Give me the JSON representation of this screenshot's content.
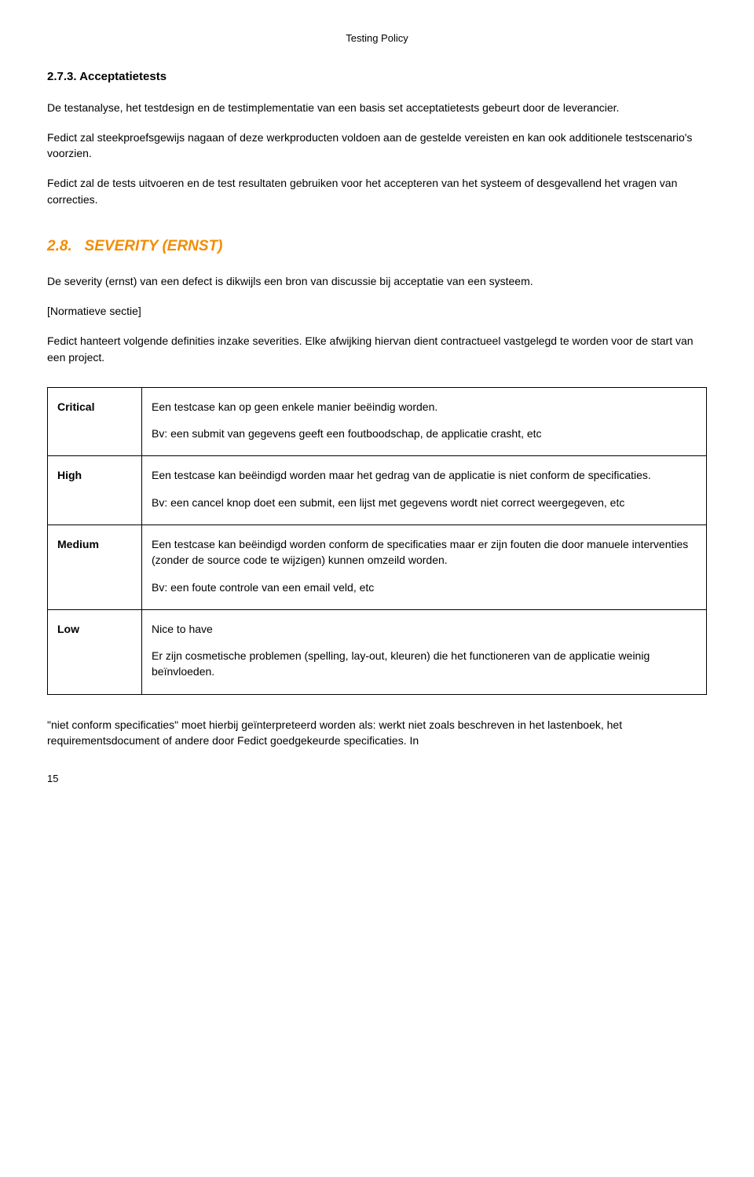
{
  "header": "Testing Policy",
  "section273": {
    "number": "2.7.3.",
    "title": "Acceptatietests",
    "p1": "De testanalyse, het testdesign en de testimplementatie van een basis set acceptatietests gebeurt door de leverancier.",
    "p2": "Fedict zal steekproefsgewijs nagaan of deze werkproducten voldoen aan de gestelde vereisten en kan ook additionele testscenario's voorzien.",
    "p3": "Fedict zal de tests uitvoeren en de test resultaten gebruiken voor het accepteren van het systeem of desgevallend het vragen van correcties."
  },
  "section28": {
    "number": "2.8.",
    "title": "SEVERITY (ERNST)",
    "p1": "De severity (ernst) van een defect is dikwijls een bron van discussie bij acceptatie van een systeem.",
    "p2": "[Normatieve sectie]",
    "p3": "Fedict hanteert volgende definities inzake severities. Elke afwijking hiervan dient contractueel vastgelegd te worden voor de start van een project."
  },
  "table": {
    "rows": [
      {
        "label": "Critical",
        "p1": "Een testcase kan op geen enkele manier beëindig worden.",
        "p2": "Bv: een submit van gegevens geeft een foutboodschap, de applicatie crasht, etc"
      },
      {
        "label": "High",
        "p1": "Een testcase kan beëindigd worden maar het gedrag van de applicatie is niet conform de specificaties.",
        "p2": "Bv: een cancel knop doet een submit, een lijst met gegevens wordt niet correct weergegeven, etc"
      },
      {
        "label": "Medium",
        "p1": "Een testcase kan beëindigd worden conform de specificaties maar er zijn fouten die door manuele interventies (zonder de source code te wijzigen) kunnen omzeild worden.",
        "p2": "Bv: een foute controle van een email veld, etc"
      },
      {
        "label": "Low",
        "p1": "Nice to have",
        "p2": "Er zijn cosmetische problemen (spelling, lay-out, kleuren) die het functioneren van de applicatie weinig beïnvloeden."
      }
    ]
  },
  "footer_p": "\"niet conform specificaties\" moet hierbij geïnterpreteerd worden als: werkt niet zoals beschreven in het lastenboek, het requirementsdocument of andere door Fedict goedgekeurde specificaties. In",
  "page_number": "15"
}
